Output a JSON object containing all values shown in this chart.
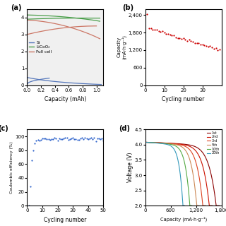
{
  "panel_a": {
    "label": "(a)",
    "xlabel": "Capacity (mAh)",
    "xlim": [
      0,
      1.1
    ],
    "xticks": [
      0,
      0.2,
      0.4,
      0.6,
      0.8,
      1.0
    ],
    "legend_labels": [
      "Si",
      "LiCoO₂",
      "Full cell"
    ],
    "legend_colors": [
      "#5577bb",
      "#4a9e4a",
      "#cc7766"
    ]
  },
  "panel_b": {
    "label": "(b)",
    "ylabel": "Capacity\n(mA·h·g⁻¹)",
    "xlabel": "Cycling number",
    "ylim": [
      0,
      2600
    ],
    "yticks": [
      0,
      600,
      1200,
      1800,
      2400
    ],
    "xlim": [
      0,
      40
    ],
    "xticks": [
      0,
      10,
      20,
      30
    ],
    "color": "#cc0000"
  },
  "panel_c": {
    "label": "(c)",
    "ylabel": "Coulombic efficiency (%)",
    "xlabel": "Cycling number",
    "ylim": [
      0,
      110
    ],
    "yticks": [
      0,
      20,
      40,
      60,
      80,
      100
    ],
    "xlim": [
      0,
      50
    ],
    "xticks": [
      0,
      10,
      20,
      30,
      40,
      50
    ],
    "color": "#3366cc"
  },
  "panel_d": {
    "label": "(d)",
    "ylabel": "Voltage (V)",
    "xlabel": "Capacity (mA·h·g⁻¹)",
    "ylim": [
      2.0,
      4.5
    ],
    "yticks": [
      2.0,
      2.5,
      3.0,
      3.5,
      4.0,
      4.5
    ],
    "xlim": [
      0,
      1800
    ],
    "xticks": [
      0,
      600,
      1200,
      1800
    ],
    "colors": [
      "#8b0000",
      "#cc1100",
      "#dd4422",
      "#cc8855",
      "#55aa44",
      "#3399bb"
    ],
    "max_caps": [
      1750,
      1580,
      1420,
      1270,
      1100,
      930
    ],
    "legend_labels": [
      "1st",
      "2nd",
      "3rd",
      "5th",
      "10th",
      "20th"
    ]
  },
  "background": "#ffffff"
}
